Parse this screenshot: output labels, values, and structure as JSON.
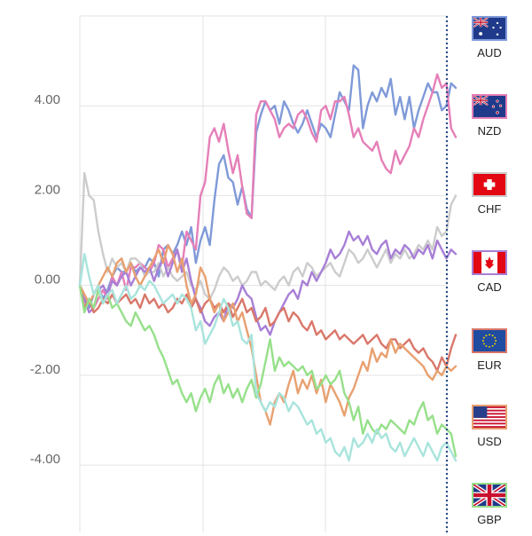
{
  "chart_data": {
    "type": "line",
    "title": "",
    "xlabel": "",
    "ylabel": "",
    "ylim": [
      -5.5,
      6.0
    ],
    "yticks": [
      4.0,
      2.0,
      0.0,
      -2.0,
      -4.0
    ],
    "ytick_labels": [
      "4.00",
      "2.00",
      "0.00",
      "-2.00",
      "-4.00"
    ],
    "grid": true,
    "legend_placement": "right",
    "series": [
      {
        "name": "AUD",
        "color": "#7f9ad8",
        "values": [
          0.0,
          -0.2,
          -0.5,
          -0.2,
          0.0,
          -0.3,
          -0.1,
          0.2,
          0.4,
          0.3,
          0.3,
          0.5,
          0.3,
          0.4,
          0.4,
          0.6,
          0.5,
          0.2,
          0.8,
          0.9,
          0.7,
          0.9,
          1.2,
          0.9,
          1.3,
          0.5,
          1.0,
          1.3,
          0.9,
          1.9,
          2.7,
          2.9,
          2.4,
          2.3,
          1.8,
          2.2,
          1.7,
          1.5,
          3.4,
          3.8,
          4.1,
          3.9,
          4.0,
          3.6,
          4.1,
          3.9,
          3.6,
          3.4,
          3.6,
          3.9,
          3.6,
          3.3,
          3.6,
          3.5,
          3.3,
          3.8,
          4.3,
          4.1,
          3.9,
          4.9,
          4.8,
          3.5,
          4.0,
          4.3,
          4.1,
          4.4,
          4.2,
          4.6,
          3.8,
          4.2,
          3.7,
          4.2,
          3.5,
          3.9,
          4.2,
          4.5,
          4.3,
          4.3,
          3.9,
          4.0,
          4.5,
          4.4
        ]
      },
      {
        "name": "NZD",
        "color": "#e57fb8",
        "values": [
          0.0,
          -0.5,
          -0.3,
          -0.5,
          -0.3,
          -0.1,
          -0.3,
          0.2,
          0.0,
          0.3,
          -0.1,
          0.4,
          0.4,
          0.5,
          0.4,
          0.3,
          0.5,
          0.9,
          0.8,
          0.4,
          0.6,
          0.8,
          0.4,
          1.2,
          1.0,
          0.8,
          2.0,
          2.3,
          3.3,
          3.5,
          3.2,
          3.6,
          3.0,
          2.5,
          2.9,
          2.2,
          1.6,
          1.5,
          3.8,
          4.1,
          4.1,
          3.9,
          3.7,
          3.3,
          3.5,
          3.6,
          3.5,
          3.8,
          3.9,
          3.7,
          3.4,
          3.2,
          3.9,
          4.0,
          3.7,
          4.1,
          4.1,
          4.2,
          3.8,
          3.3,
          3.5,
          3.2,
          3.1,
          3.0,
          3.2,
          2.8,
          2.6,
          2.5,
          3.0,
          2.7,
          2.9,
          3.1,
          3.5,
          3.3,
          3.7,
          4.0,
          4.3,
          4.7,
          4.4,
          4.5,
          3.5,
          3.3
        ]
      },
      {
        "name": "CHF",
        "color": "#cccccc",
        "values": [
          0.0,
          2.5,
          2.0,
          1.9,
          1.2,
          0.7,
          0.3,
          0.6,
          0.4,
          0.5,
          0.3,
          0.6,
          0.6,
          0.5,
          0.2,
          0.3,
          0.3,
          0.5,
          0.2,
          0.4,
          0.2,
          0.1,
          0.2,
          0.3,
          0.0,
          -0.1,
          0.1,
          -0.2,
          -0.3,
          -0.1,
          0.2,
          0.4,
          0.3,
          0.1,
          0.2,
          0.0,
          0.1,
          0.3,
          0.3,
          0.0,
          0.1,
          0.0,
          -0.1,
          0.1,
          0.2,
          0.0,
          0.3,
          0.4,
          0.2,
          0.5,
          0.4,
          0.2,
          0.3,
          0.4,
          0.5,
          0.3,
          0.2,
          0.5,
          0.8,
          0.7,
          0.5,
          0.6,
          0.8,
          0.6,
          0.4,
          0.6,
          0.8,
          0.5,
          0.7,
          0.6,
          0.8,
          0.6,
          0.7,
          0.9,
          0.8,
          1.0,
          0.8,
          1.3,
          1.1,
          1.2,
          1.8,
          2.0
        ]
      },
      {
        "name": "CAD",
        "color": "#a87fd6",
        "values": [
          0.0,
          -0.3,
          -0.6,
          -0.5,
          -0.1,
          0.0,
          -0.2,
          0.1,
          0.0,
          0.2,
          0.3,
          0.0,
          0.2,
          0.4,
          0.3,
          0.4,
          0.1,
          0.4,
          0.6,
          0.2,
          0.5,
          0.8,
          0.3,
          0.6,
          0.1,
          -0.3,
          -0.5,
          -0.8,
          -0.9,
          -0.7,
          -0.6,
          -0.8,
          -0.4,
          -0.5,
          -0.3,
          0.0,
          -0.2,
          -0.3,
          -0.7,
          -1.0,
          -0.9,
          -1.1,
          -0.8,
          -0.6,
          -0.4,
          -0.2,
          -0.1,
          -0.3,
          0.1,
          0.0,
          0.3,
          0.1,
          0.3,
          0.5,
          0.8,
          0.6,
          0.7,
          0.9,
          1.2,
          1.0,
          1.1,
          0.9,
          1.1,
          0.8,
          0.7,
          0.9,
          1.0,
          0.6,
          0.8,
          0.7,
          0.9,
          0.8,
          0.6,
          0.8,
          0.7,
          0.9,
          0.6,
          1.0,
          0.8,
          0.6,
          0.8,
          0.7
        ]
      },
      {
        "name": "EUR",
        "color": "#d9776a",
        "values": [
          0.0,
          -0.5,
          -0.3,
          -0.6,
          -0.5,
          -0.3,
          -0.4,
          -0.2,
          -0.4,
          -0.3,
          -0.2,
          -0.4,
          -0.3,
          -0.5,
          -0.2,
          -0.4,
          -0.3,
          -0.5,
          -0.4,
          -0.6,
          -0.5,
          -0.3,
          -0.4,
          -0.2,
          -0.5,
          -0.3,
          -0.6,
          -0.4,
          -0.3,
          -0.5,
          -0.4,
          -0.6,
          -0.4,
          -0.7,
          -0.5,
          -0.3,
          -0.6,
          -0.5,
          -0.8,
          -0.7,
          -0.5,
          -0.9,
          -0.8,
          -0.6,
          -0.5,
          -0.8,
          -0.6,
          -0.7,
          -0.9,
          -1.0,
          -0.8,
          -1.1,
          -1.0,
          -1.2,
          -1.1,
          -1.0,
          -1.2,
          -1.1,
          -1.2,
          -1.3,
          -1.2,
          -1.1,
          -1.3,
          -1.2,
          -1.1,
          -1.3,
          -1.4,
          -1.2,
          -1.2,
          -1.4,
          -1.3,
          -1.2,
          -1.4,
          -1.5,
          -1.4,
          -1.6,
          -1.7,
          -1.9,
          -1.6,
          -1.8,
          -1.4,
          -1.1
        ]
      },
      {
        "name": "USD",
        "color": "#e8a070",
        "values": [
          0.0,
          -0.2,
          -0.4,
          -0.2,
          0.0,
          0.2,
          0.4,
          0.2,
          0.5,
          0.6,
          0.3,
          0.5,
          0.2,
          0.0,
          0.2,
          0.4,
          0.6,
          0.8,
          0.5,
          0.9,
          0.7,
          0.3,
          0.6,
          0.0,
          -0.4,
          -0.2,
          0.4,
          0.2,
          -0.3,
          -0.6,
          -0.4,
          -0.8,
          -0.6,
          -0.4,
          -0.8,
          -0.6,
          -1.0,
          -1.4,
          -2.0,
          -2.6,
          -2.8,
          -3.1,
          -2.6,
          -2.4,
          -2.6,
          -2.2,
          -1.9,
          -2.4,
          -2.1,
          -2.3,
          -2.0,
          -2.4,
          -2.1,
          -2.6,
          -2.2,
          -2.4,
          -2.6,
          -2.9,
          -2.5,
          -2.3,
          -2.0,
          -1.7,
          -1.9,
          -1.4,
          -1.7,
          -1.5,
          -1.6,
          -1.2,
          -1.5,
          -1.3,
          -1.4,
          -1.5,
          -1.6,
          -1.7,
          -1.8,
          -2.0,
          -2.1,
          -1.9,
          -2.0,
          -1.8,
          -1.9,
          -1.8
        ]
      },
      {
        "name": "GBP",
        "color": "#96e08a",
        "values": [
          0.0,
          -0.6,
          -0.3,
          -0.5,
          -0.1,
          -0.4,
          -0.2,
          -0.5,
          -0.4,
          -0.6,
          -0.8,
          -0.9,
          -0.6,
          -0.8,
          -1.0,
          -0.9,
          -1.1,
          -1.4,
          -1.6,
          -1.9,
          -2.2,
          -2.1,
          -2.4,
          -2.6,
          -2.4,
          -2.8,
          -2.5,
          -2.3,
          -2.6,
          -2.2,
          -2.0,
          -2.4,
          -2.2,
          -2.5,
          -2.3,
          -2.6,
          -2.3,
          -2.1,
          -2.5,
          -2.2,
          -1.7,
          -1.2,
          -1.9,
          -1.6,
          -1.8,
          -1.7,
          -1.8,
          -1.9,
          -1.8,
          -2.0,
          -1.9,
          -2.3,
          -2.2,
          -2.0,
          -2.2,
          -2.1,
          -1.9,
          -2.4,
          -2.6,
          -3.0,
          -2.7,
          -3.3,
          -3.0,
          -3.2,
          -3.3,
          -3.1,
          -3.2,
          -3.0,
          -3.1,
          -3.2,
          -3.3,
          -3.0,
          -3.1,
          -2.8,
          -2.6,
          -3.0,
          -2.9,
          -3.3,
          -3.1,
          -3.2,
          -3.3,
          -3.8
        ]
      },
      {
        "name": "",
        "color": "#a8e4dc",
        "values": [
          0.0,
          0.7,
          0.2,
          -0.2,
          0.0,
          -0.4,
          -0.2,
          -0.1,
          -0.4,
          -0.2,
          0.0,
          -0.3,
          -0.2,
          0.0,
          -0.1,
          0.1,
          0.0,
          -0.2,
          -0.4,
          -0.3,
          -0.2,
          -0.4,
          -0.2,
          -0.3,
          -0.5,
          -1.0,
          -0.8,
          -1.3,
          -1.1,
          -0.9,
          -0.6,
          -0.3,
          -0.5,
          -0.9,
          -0.8,
          -1.2,
          -1.3,
          -1.1,
          -2.4,
          -2.6,
          -2.8,
          -2.6,
          -2.7,
          -2.4,
          -2.5,
          -2.8,
          -2.6,
          -2.7,
          -2.9,
          -3.1,
          -3.0,
          -3.3,
          -3.2,
          -3.5,
          -3.4,
          -3.7,
          -3.8,
          -3.6,
          -3.9,
          -3.4,
          -3.6,
          -3.5,
          -3.3,
          -3.5,
          -3.2,
          -3.4,
          -3.3,
          -3.6,
          -3.7,
          -3.5,
          -3.8,
          -3.6,
          -3.4,
          -3.6,
          -3.8,
          -3.5,
          -3.7,
          -3.9,
          -3.6,
          -3.5,
          -3.7,
          -3.9
        ]
      }
    ]
  },
  "legend": {
    "items": [
      {
        "code": "AUD",
        "icon": "flag-australia-icon",
        "border": "#7f9ad8"
      },
      {
        "code": "NZD",
        "icon": "flag-new-zealand-icon",
        "border": "#e57fb8"
      },
      {
        "code": "CHF",
        "icon": "flag-switzerland-icon",
        "border": "#cccccc"
      },
      {
        "code": "CAD",
        "icon": "flag-canada-icon",
        "border": "#a87fd6"
      },
      {
        "code": "EUR",
        "icon": "flag-european-union-icon",
        "border": "#d9776a"
      },
      {
        "code": "USD",
        "icon": "flag-united-states-icon",
        "border": "#e8a070"
      },
      {
        "code": "GBP",
        "icon": "flag-united-kingdom-icon",
        "border": "#96e08a"
      }
    ]
  }
}
